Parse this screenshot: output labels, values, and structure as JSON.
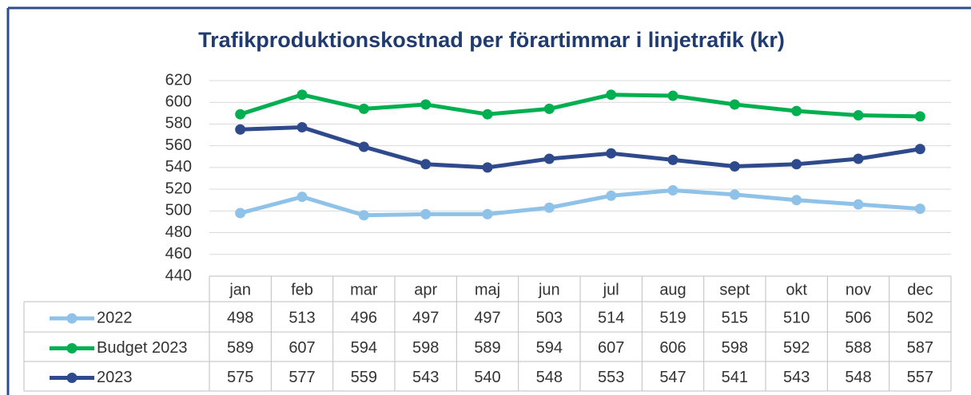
{
  "chart_data": {
    "type": "line",
    "title": "Trafikproduktionskostnad per förartimmar i linjetrafik (kr)",
    "categories": [
      "jan",
      "feb",
      "mar",
      "apr",
      "maj",
      "jun",
      "jul",
      "aug",
      "sept",
      "okt",
      "nov",
      "dec"
    ],
    "series": [
      {
        "name": "2022",
        "color": "#8fc2e8",
        "values": [
          498,
          513,
          496,
          497,
          497,
          503,
          514,
          519,
          515,
          510,
          506,
          502
        ]
      },
      {
        "name": "Budget 2023",
        "color": "#00b050",
        "values": [
          589,
          607,
          594,
          598,
          589,
          594,
          607,
          606,
          598,
          592,
          588,
          587
        ]
      },
      {
        "name": "2023",
        "color": "#2e4a8c",
        "values": [
          575,
          577,
          559,
          543,
          540,
          548,
          553,
          547,
          541,
          543,
          548,
          557
        ]
      }
    ],
    "ylim": [
      440,
      620
    ],
    "yticks": [
      440,
      460,
      480,
      500,
      520,
      540,
      560,
      580,
      600,
      620
    ],
    "grid": true
  }
}
